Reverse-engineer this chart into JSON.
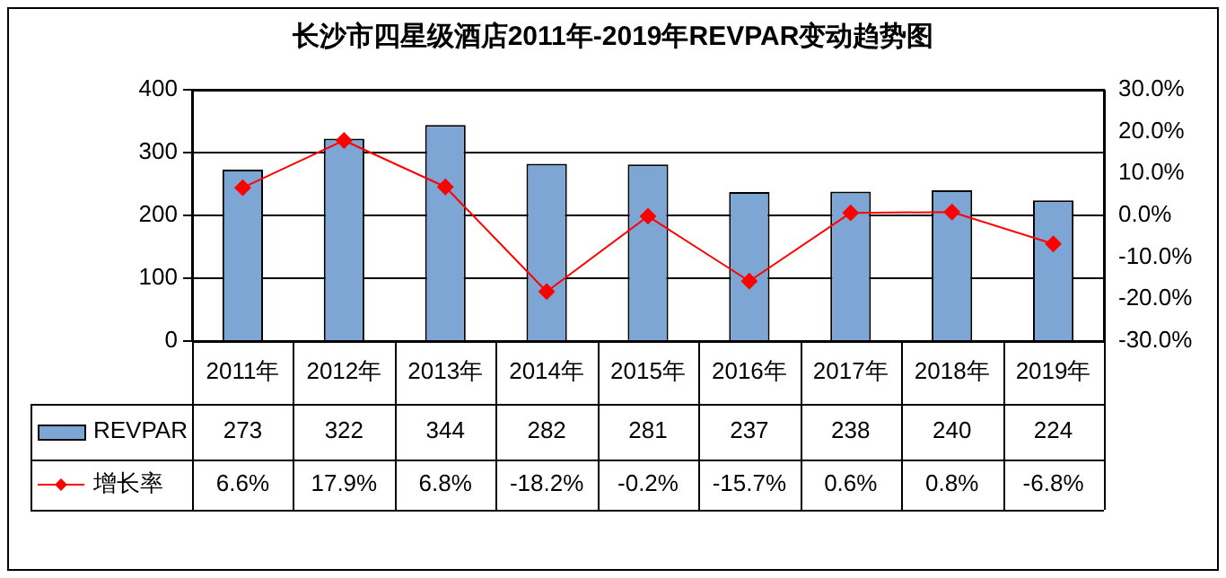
{
  "chart_data": {
    "type": "bar",
    "title": "长沙市四星级酒店2011年-2019年REVPAR变动趋势图",
    "categories": [
      "2011年",
      "2012年",
      "2013年",
      "2014年",
      "2015年",
      "2016年",
      "2017年",
      "2018年",
      "2019年"
    ],
    "series": [
      {
        "name": "REVPAR",
        "color": "#7da6d4",
        "values": [
          273,
          322,
          344,
          282,
          281,
          237,
          238,
          240,
          224
        ]
      },
      {
        "name": "增长率",
        "type": "line",
        "axis": "y2",
        "color": "#ff0000",
        "values": [
          6.6,
          17.9,
          6.8,
          -18.2,
          -0.2,
          -15.7,
          0.6,
          0.8,
          -6.8
        ],
        "value_labels": [
          "6.6%",
          "17.9%",
          "6.8%",
          "-18.2%",
          "-0.2%",
          "-15.7%",
          "0.6%",
          "0.8%",
          "-6.8%"
        ]
      }
    ],
    "ylim": [
      0,
      400
    ],
    "yticks": [
      0,
      100,
      200,
      300,
      400
    ],
    "y2lim": [
      -30,
      30
    ],
    "y2ticks": [
      {
        "value": -30,
        "label": "-30.0%"
      },
      {
        "value": -20,
        "label": "-20.0%"
      },
      {
        "value": -10,
        "label": "-10.0%"
      },
      {
        "value": 0,
        "label": "0.0%"
      },
      {
        "value": 10,
        "label": "10.0%"
      },
      {
        "value": 20,
        "label": "20.0%"
      },
      {
        "value": 30,
        "label": "30.0%"
      }
    ],
    "grid": "y",
    "legend": "bottom left",
    "marker": "diamond",
    "data_labels": true
  }
}
